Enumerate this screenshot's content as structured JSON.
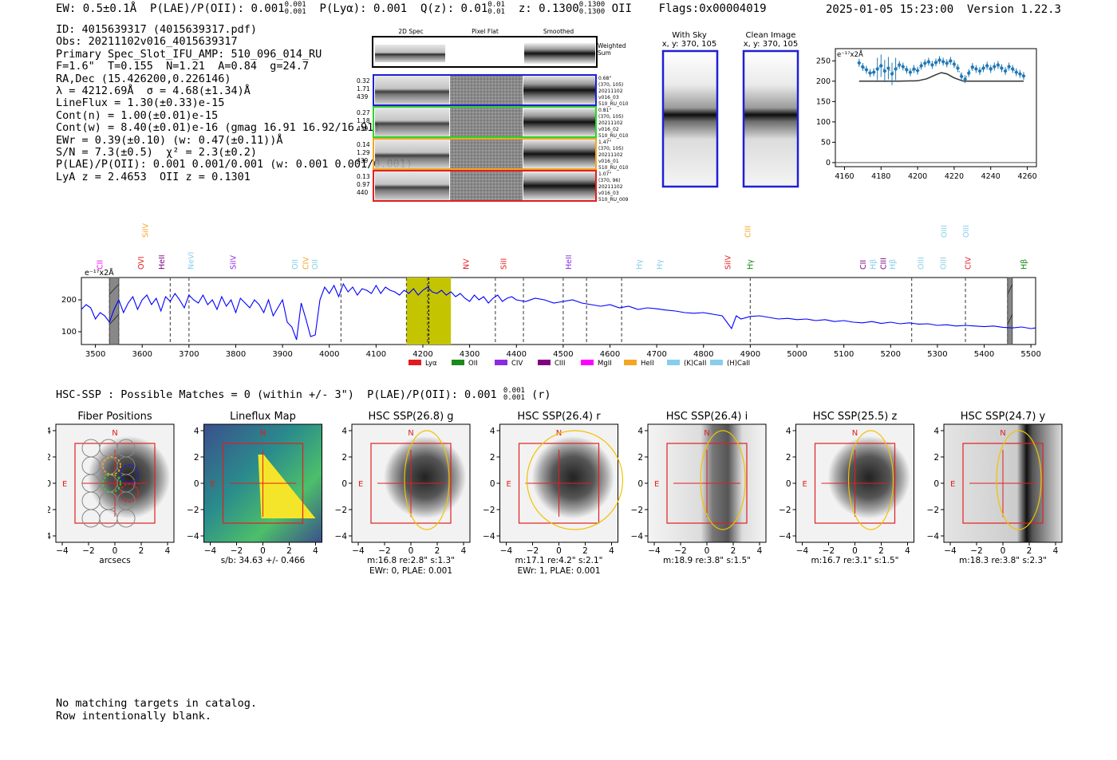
{
  "header": {
    "ew": "EW: 0.5±0.1Å",
    "plae": "P(LAE)/P(OII): 0.001",
    "plae_hi": "0.001",
    "plae_lo": "0.001",
    "plya": "P(Lyα): 0.001",
    "qz": "Q(z): 0.01",
    "qz_hi": "0.01",
    "qz_lo": "0.01",
    "z": "z: 0.1300",
    "z_hi": "0.1300",
    "z_lo": "0.1300",
    "z_line": "OII",
    "flags": "Flags:0x00004019",
    "datestamp": "2025-01-05 15:23:00  Version 1.22.3"
  },
  "info_lines": [
    "ID: 4015639317 (4015639317.pdf)",
    "Obs: 20211102v016_4015639317",
    "Primary Spec_Slot_IFU_AMP: 510_096_014_RU",
    "F=1.6\"  T=0.155  N=1.21  A=0.84  g=24.7",
    "RA,Dec (15.426200,0.226146)",
    "λ = 4212.69Å  σ = 4.68(±1.34)Å",
    "LineFlux = 1.30(±0.33)e-15",
    "Cont(n) = 1.00(±0.01)e-15",
    "Cont(w) = 8.40(±0.01)e-16 (gmag 16.91 16.92/16.91)",
    "EWr = 0.39(±0.10) (w: 0.47(±0.11))Å",
    "S/N = 7.3(±0.5)  χ² = 2.3(±0.2)",
    "P(LAE)/P(OII): 0.001 0.001/0.001 (w: 0.001 0.001/0.001)",
    "LyA z = 2.4653  OII z = 0.1301"
  ],
  "cutouts": {
    "col_headers": [
      "2D Spec",
      "Pixel Flat",
      "Smoothed"
    ],
    "weighted_label": "Weighted Sum",
    "rows": [
      {
        "left": [
          "0.32",
          "1.71",
          "439"
        ],
        "right": [
          "0.68\"",
          "(370, 105)",
          "20211102",
          "v016_03",
          "510_RU_010"
        ],
        "color": "#1f1fd6"
      },
      {
        "left": [
          "0.27",
          "1.18",
          "439"
        ],
        "right": [
          "0.81\"",
          "(370, 105)",
          "20211102",
          "v016_02",
          "510_RU_010"
        ],
        "color": "#2bd52b"
      },
      {
        "left": [
          "0.14",
          "1.29",
          "439"
        ],
        "right": [
          "1.47\"",
          "(370, 105)",
          "20211102",
          "v016_01",
          "510_RU_010"
        ],
        "color": "#f5a623"
      },
      {
        "left": [
          "0.13",
          "0.97",
          "440"
        ],
        "right": [
          "1.07\"",
          "(370, 96)",
          "20211102",
          "v016_03",
          "510_RU_009"
        ],
        "color": "#e02020"
      }
    ]
  },
  "sky": {
    "with_sky_title": "With Sky",
    "with_sky_sub": "x, y: 370, 105",
    "clean_title": "Clean Image",
    "clean_sub": "x, y: 370, 105"
  },
  "chart_data": [
    {
      "type": "line",
      "name": "small-line-fit",
      "unit_label": "e⁻¹⁷x2Å",
      "xlim": [
        4155,
        4265
      ],
      "ylim": [
        -10,
        280
      ],
      "xticks": [
        4160,
        4180,
        4200,
        4220,
        4240,
        4260
      ],
      "yticks": [
        0,
        50,
        100,
        150,
        200,
        250
      ],
      "data_x": [
        4168,
        4170,
        4172,
        4174,
        4176,
        4178,
        4180,
        4182,
        4184,
        4186,
        4188,
        4190,
        4192,
        4194,
        4196,
        4198,
        4200,
        4202,
        4204,
        4206,
        4208,
        4210,
        4212,
        4214,
        4216,
        4218,
        4220,
        4222,
        4224,
        4226,
        4228,
        4230,
        4232,
        4234,
        4236,
        4238,
        4240,
        4242,
        4244,
        4246,
        4248,
        4250,
        4252,
        4254,
        4256,
        4258
      ],
      "data_y": [
        245,
        235,
        228,
        220,
        222,
        230,
        238,
        225,
        232,
        218,
        230,
        240,
        236,
        228,
        222,
        230,
        226,
        238,
        244,
        248,
        240,
        246,
        252,
        248,
        244,
        250,
        242,
        232,
        212,
        205,
        220,
        235,
        230,
        225,
        232,
        238,
        230,
        236,
        240,
        232,
        225,
        236,
        230,
        222,
        218,
        213
      ],
      "fit_x": [
        4168,
        4190,
        4200,
        4205,
        4210,
        4213,
        4216,
        4220,
        4225,
        4230,
        4258
      ],
      "fit_y": [
        200,
        200,
        201,
        206,
        216,
        221,
        218,
        208,
        200,
        200,
        200
      ]
    },
    {
      "type": "line",
      "name": "main-spectrum",
      "unit_label": "e⁻¹⁷x2Å",
      "xlim": [
        3470,
        5510
      ],
      "ylim": [
        60,
        270
      ],
      "xticks": [
        3500,
        3600,
        3700,
        3800,
        3900,
        4000,
        4100,
        4200,
        4300,
        4400,
        4500,
        4600,
        4700,
        4800,
        4900,
        5000,
        5100,
        5200,
        5300,
        5400,
        5500
      ],
      "yticks": [
        100,
        200
      ],
      "highlight_band": [
        4165,
        4260
      ],
      "line_marker": 4212.69,
      "masked": [
        [
          3530,
          3550
        ],
        [
          5450,
          5460
        ]
      ],
      "dashed_lines": [
        3530,
        3550,
        3660,
        3700,
        4025,
        4165,
        4210,
        4355,
        4415,
        4500,
        4550,
        4625,
        4900,
        5245,
        5360,
        5450
      ],
      "legend": [
        {
          "label": "Lyα",
          "color": "#e41a1c"
        },
        {
          "label": "OII",
          "color": "#1a8a1a"
        },
        {
          "label": "CIV",
          "color": "#8a2be2"
        },
        {
          "label": "CIII",
          "color": "#800080"
        },
        {
          "label": "MgII",
          "color": "#ff00ff"
        },
        {
          "label": "HeII",
          "color": "#f5a623"
        },
        {
          "label": "(K)CaII",
          "color": "#87ceeb"
        },
        {
          "label": "(H)CaII",
          "color": "#87ceeb"
        }
      ],
      "line_labels": [
        {
          "label": "CII",
          "x": 3515,
          "color": "#ff00ff",
          "tier": 0
        },
        {
          "label": "SiIV",
          "x": 3612,
          "color": "#f5a623",
          "tier": 1
        },
        {
          "label": "OVI",
          "x": 3603,
          "color": "#e41a1c",
          "tier": 0
        },
        {
          "label": "HeII",
          "x": 3647,
          "color": "#800080",
          "tier": 0
        },
        {
          "label": "NeVI",
          "x": 3710,
          "color": "#87ceeb",
          "tier": 0
        },
        {
          "label": "SiIV",
          "x": 3800,
          "color": "#8a2be2",
          "tier": 0
        },
        {
          "label": "OII",
          "x": 3932,
          "color": "#87ceeb",
          "tier": 0
        },
        {
          "label": "CIV",
          "x": 3955,
          "color": "#f5a623",
          "tier": 0
        },
        {
          "label": "OII",
          "x": 3975,
          "color": "#87ceeb",
          "tier": 0
        },
        {
          "label": "NV",
          "x": 4298,
          "color": "#e41a1c",
          "tier": 0
        },
        {
          "label": "SiII",
          "x": 4378,
          "color": "#e41a1c",
          "tier": 0
        },
        {
          "label": "HeII",
          "x": 4517,
          "color": "#8a2be2",
          "tier": 0
        },
        {
          "label": "Hγ",
          "x": 4668,
          "color": "#87ceeb",
          "tier": 0
        },
        {
          "label": "Hγ",
          "x": 4712,
          "color": "#87ceeb",
          "tier": 0
        },
        {
          "label": "SiIV",
          "x": 4858,
          "color": "#e41a1c",
          "tier": 0
        },
        {
          "label": "CIII",
          "x": 4900,
          "color": "#f5a623",
          "tier": 1
        },
        {
          "label": "Hγ",
          "x": 4905,
          "color": "#1a8a1a",
          "tier": 0
        },
        {
          "label": "CII",
          "x": 5147,
          "color": "#800080",
          "tier": 0
        },
        {
          "label": "Hβ",
          "x": 5168,
          "color": "#87ceeb",
          "tier": 0
        },
        {
          "label": "CIII",
          "x": 5190,
          "color": "#800080",
          "tier": 0
        },
        {
          "label": "Hβ",
          "x": 5210,
          "color": "#87ceeb",
          "tier": 0
        },
        {
          "label": "OIII",
          "x": 5270,
          "color": "#87ceeb",
          "tier": 0
        },
        {
          "label": "OIII",
          "x": 5318,
          "color": "#87ceeb",
          "tier": 0
        },
        {
          "label": "OIII",
          "x": 5320,
          "color": "#87ceeb",
          "tier": 1
        },
        {
          "label": "OIII",
          "x": 5367,
          "color": "#87ceeb",
          "tier": 1
        },
        {
          "label": "CIV",
          "x": 5371,
          "color": "#e41a1c",
          "tier": 0
        },
        {
          "label": "Hβ",
          "x": 5490,
          "color": "#1a8a1a",
          "tier": 0
        }
      ],
      "x": [
        3470,
        3480,
        3490,
        3500,
        3510,
        3520,
        3530,
        3540,
        3550,
        3560,
        3570,
        3580,
        3590,
        3600,
        3610,
        3620,
        3630,
        3640,
        3650,
        3660,
        3670,
        3680,
        3690,
        3700,
        3710,
        3720,
        3730,
        3740,
        3750,
        3760,
        3770,
        3780,
        3790,
        3800,
        3810,
        3820,
        3830,
        3840,
        3850,
        3860,
        3870,
        3880,
        3890,
        3900,
        3910,
        3920,
        3930,
        3940,
        3950,
        3960,
        3970,
        3980,
        3990,
        4000,
        4010,
        4020,
        4030,
        4040,
        4050,
        4060,
        4070,
        4080,
        4090,
        4100,
        4110,
        4120,
        4130,
        4140,
        4150,
        4160,
        4170,
        4180,
        4190,
        4200,
        4210,
        4220,
        4230,
        4240,
        4250,
        4260,
        4270,
        4280,
        4290,
        4300,
        4310,
        4320,
        4330,
        4340,
        4350,
        4360,
        4370,
        4380,
        4390,
        4400,
        4420,
        4440,
        4460,
        4480,
        4500,
        4520,
        4540,
        4560,
        4580,
        4600,
        4620,
        4640,
        4660,
        4680,
        4700,
        4720,
        4740,
        4760,
        4780,
        4800,
        4820,
        4840,
        4860,
        4870,
        4880,
        4900,
        4920,
        4940,
        4960,
        4980,
        5000,
        5020,
        5040,
        5060,
        5080,
        5100,
        5120,
        5140,
        5160,
        5180,
        5200,
        5220,
        5240,
        5260,
        5280,
        5300,
        5320,
        5340,
        5360,
        5380,
        5400,
        5420,
        5440,
        5460,
        5480,
        5500,
        5510
      ],
      "y": [
        170,
        185,
        175,
        140,
        160,
        150,
        130,
        170,
        200,
        160,
        190,
        210,
        170,
        200,
        215,
        185,
        205,
        165,
        210,
        195,
        220,
        200,
        175,
        215,
        200,
        190,
        215,
        185,
        200,
        170,
        210,
        180,
        200,
        160,
        205,
        190,
        175,
        200,
        185,
        160,
        200,
        150,
        175,
        200,
        130,
        115,
        75,
        190,
        140,
        85,
        90,
        200,
        240,
        220,
        245,
        210,
        250,
        225,
        240,
        215,
        235,
        230,
        220,
        245,
        220,
        240,
        230,
        225,
        215,
        230,
        220,
        235,
        215,
        230,
        240,
        225,
        220,
        230,
        215,
        225,
        210,
        220,
        205,
        195,
        215,
        200,
        210,
        190,
        205,
        215,
        195,
        205,
        210,
        200,
        195,
        205,
        200,
        190,
        195,
        200,
        190,
        185,
        180,
        185,
        175,
        180,
        170,
        175,
        172,
        168,
        165,
        160,
        158,
        160,
        155,
        150,
        110,
        150,
        140,
        148,
        150,
        145,
        140,
        142,
        138,
        140,
        135,
        138,
        132,
        135,
        130,
        128,
        132,
        126,
        130,
        125,
        128,
        124,
        125,
        120,
        122,
        118,
        120,
        118,
        116,
        118,
        114,
        112,
        115,
        110,
        112
      ]
    },
    {
      "type": "image-grid",
      "name": "hsc-thumbnails",
      "panels": [
        {
          "title": "Fiber Positions",
          "caption": [
            "arcsecs"
          ]
        },
        {
          "title": "Lineflux Map",
          "caption": [
            "s/b: 34.63 +/- 0.466"
          ]
        },
        {
          "title": "HSC SSP(26.8) g",
          "caption": [
            "m:16.8  re:2.8\"  s:1.3\"",
            "EWr: 0, PLAE: 0.001"
          ]
        },
        {
          "title": "HSC SSP(26.4) r",
          "caption": [
            "m:17.1  re:4.2\"  s:2.1\"",
            "EWr: 1, PLAE: 0.001"
          ]
        },
        {
          "title": "HSC SSP(26.4) i",
          "caption": [
            "m:18.9  re:3.8\"  s:1.5\""
          ]
        },
        {
          "title": "HSC SSP(25.5) z",
          "caption": [
            "m:16.7  re:3.1\"  s:1.5\""
          ]
        },
        {
          "title": "HSC SSP(24.7) y",
          "caption": [
            "m:18.3  re:3.8\"  s:2.3\""
          ]
        }
      ],
      "xticks": [
        "−4",
        "−2",
        "0",
        "2",
        "4"
      ],
      "yticks": [
        "4",
        "2",
        "0",
        "−2",
        "−4"
      ],
      "compass": {
        "north": "N",
        "east": "E"
      }
    }
  ],
  "hsc_line": {
    "text": "HSC-SSP : Possible Matches = 0 (within +/- 3\")  P(LAE)/P(OII): 0.001",
    "frac_hi": "0.001",
    "frac_lo": "0.001",
    "suffix": "(r)"
  },
  "notes": [
    "No matching targets in catalog.",
    "Row intentionally blank."
  ],
  "colors": {
    "spectrum": "#0000ff",
    "highlight": "#c4c400",
    "ellipse": "#f2c200",
    "box": "#e02020",
    "fitline": "#333333",
    "points": "#1f77b4"
  }
}
